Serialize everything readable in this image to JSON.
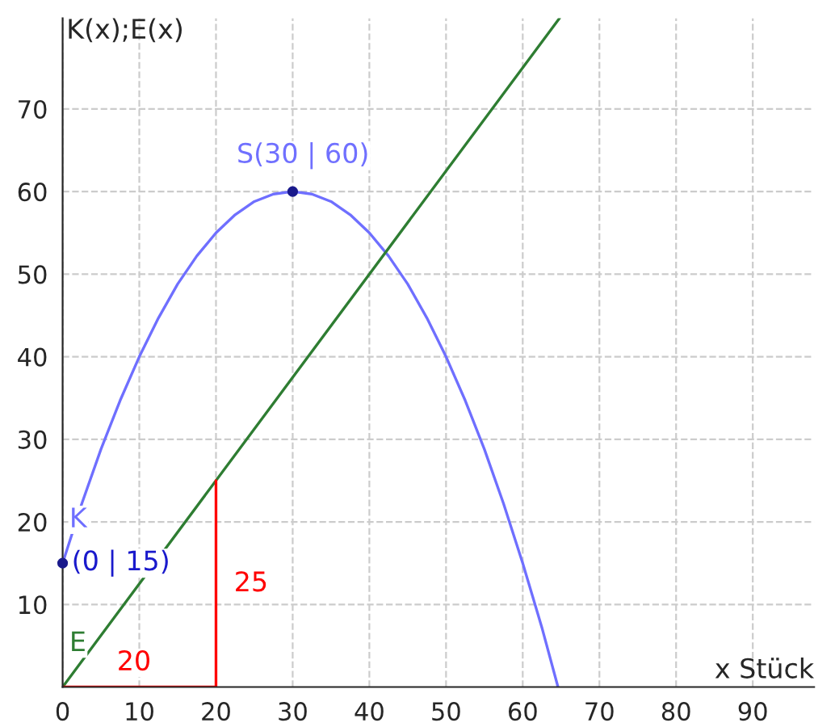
{
  "chart_data": {
    "type": "line",
    "xlabel": "x Stück",
    "ylabel": "K(x);E(x)",
    "xlim": [
      0,
      98
    ],
    "ylim": [
      0,
      81
    ],
    "xticks": [
      0,
      10,
      20,
      30,
      40,
      50,
      60,
      70,
      80,
      90
    ],
    "yticks": [
      10,
      20,
      30,
      40,
      50,
      60,
      70
    ],
    "grid": true,
    "series": [
      {
        "name": "K",
        "color": "#6f6fff",
        "x": [
          0,
          2.5,
          5,
          7.5,
          10,
          12.5,
          15,
          17.5,
          20,
          22.5,
          25,
          27.5,
          30,
          32.5,
          35,
          37.5,
          40,
          42.5,
          45,
          47.5,
          50,
          52.5,
          55,
          57.5,
          60,
          62.5,
          64.6
        ],
        "values": [
          15,
          22.2,
          28.8,
          34.7,
          40,
          44.7,
          48.8,
          52.2,
          55,
          57.2,
          58.8,
          59.7,
          60,
          59.7,
          58.8,
          57.2,
          55,
          52.2,
          48.8,
          44.7,
          40,
          34.7,
          28.8,
          22.2,
          15,
          7.2,
          0
        ]
      },
      {
        "name": "E",
        "color": "#2e7d32",
        "x": [
          0,
          64.8
        ],
        "values": [
          0,
          81
        ]
      },
      {
        "color": "#ff0000",
        "x": [
          0,
          20,
          20
        ],
        "values": [
          0,
          0,
          25
        ]
      },
      {
        "type": "scatter",
        "color": "#1a1a8c",
        "x": [
          0,
          30
        ],
        "values": [
          15,
          60
        ],
        "marker": "circle"
      }
    ],
    "annotations": [
      {
        "text": "(0 | 15)",
        "x": 0,
        "y": 15
      },
      {
        "text": "S(30 | 60)",
        "x": 30,
        "y": 60
      },
      {
        "text": "20",
        "x": 10,
        "y": 0
      },
      {
        "text": "25",
        "x": 20,
        "y": 12.5
      }
    ]
  }
}
